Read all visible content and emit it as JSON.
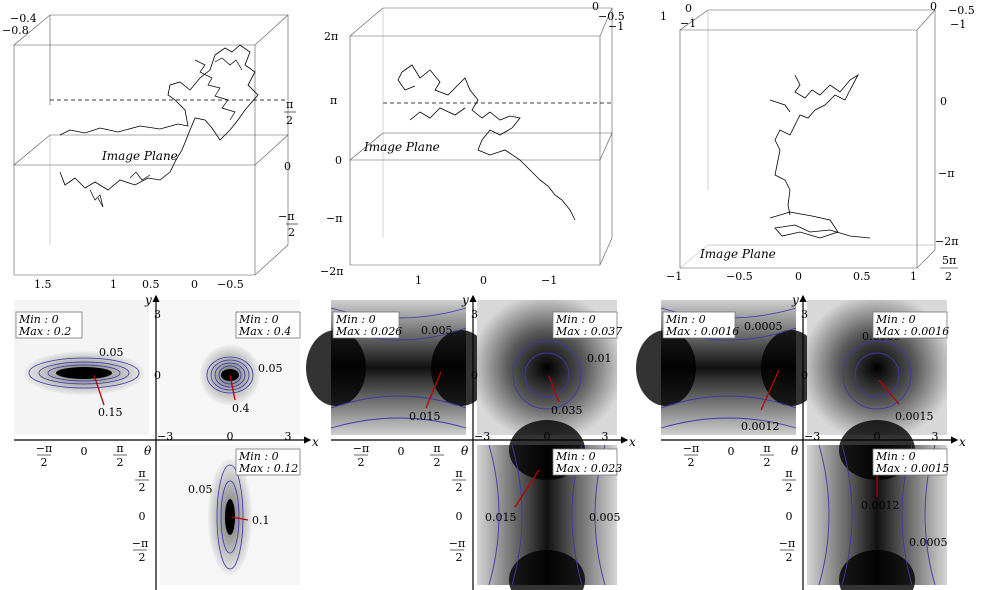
{
  "figure": {
    "image_plane_label": "Image Plane",
    "panels": [
      {
        "id": "a",
        "cube_bottom_ticks": [
          "1.5",
          "1",
          "0.5",
          "0",
          "−0.5"
        ],
        "cube_right_ticks": [
          "π/2",
          "0",
          "−π/2"
        ],
        "cube_top_ticks": [
          "−0.4",
          "−0.8"
        ],
        "xy": {
          "min": "Min : 0",
          "max_left": "Max : 0.2",
          "max_right": "Max : 0.4",
          "left_contours": [
            "0.05",
            "0.15"
          ],
          "right_contours": [
            "0.05",
            "0.4"
          ],
          "x_ticks_left": [
            "−π/2",
            "0",
            "π/2"
          ],
          "x_ticks_right": [
            "−3",
            "0",
            "3"
          ],
          "y_ticks": [
            "3",
            "0"
          ],
          "x_label": "x",
          "y_label": "y"
        },
        "theta": {
          "min": "Min : 0",
          "max": "Max : 0.12",
          "contours": [
            "0.05",
            "0.1"
          ],
          "y_ticks": [
            "π/2",
            "0",
            "−π/2"
          ],
          "label": "θ"
        }
      },
      {
        "id": "b",
        "cube_left_ticks": [
          "2π",
          "π",
          "0",
          "−π",
          "−2π"
        ],
        "cube_bottom_ticks": [
          "1",
          "0",
          "−1"
        ],
        "cube_top_ticks": [
          "0",
          "−0.5",
          "−1"
        ],
        "xy": {
          "min": "Min : 0",
          "max_left": "Max : 0.026",
          "max_right": "Max : 0.037",
          "left_contours": [
            "0.005",
            "0.015"
          ],
          "right_contours": [
            "0.01",
            "0.035"
          ],
          "x_ticks_left": [
            "−π/2",
            "0",
            "π/2"
          ],
          "x_ticks_right": [
            "−3",
            "0",
            "3"
          ],
          "y_ticks": [
            "3",
            "0"
          ],
          "x_label": "x",
          "y_label": "y"
        },
        "theta": {
          "min": "Min : 0",
          "max": "Max : 0.023",
          "contours": [
            "0.015",
            "0.005"
          ],
          "y_ticks": [
            "π/2",
            "0",
            "−π/2"
          ],
          "label": "θ"
        }
      },
      {
        "id": "c",
        "cube_right_ticks": [
          "0",
          "−π",
          "−2π",
          "−5π/2"
        ],
        "cube_bottom_ticks": [
          "−1",
          "−0.5",
          "0",
          "0.5",
          "1"
        ],
        "cube_top_ticks": [
          "1",
          "0",
          "−1",
          "0",
          "−0.5",
          "−1"
        ],
        "xy": {
          "min": "Min : 0",
          "max_left": "Max : 0.0016",
          "max_right": "Max : 0.0016",
          "left_contours": [
            "0.0005",
            "0.0012"
          ],
          "right_contours": [
            "0.0009",
            "0.0015"
          ],
          "x_ticks_left": [
            "−π/2",
            "0",
            "π/2"
          ],
          "x_ticks_right": [
            "−3",
            "0",
            "3"
          ],
          "y_ticks": [
            "3",
            "0"
          ],
          "x_label": "x",
          "y_label": "y"
        },
        "theta": {
          "min": "Min : 0",
          "max": "Max : 0.0015",
          "contours": [
            "0.0012",
            "0.0005"
          ],
          "y_ticks": [
            "π/2",
            "0",
            "−π/2"
          ],
          "label": "θ"
        }
      }
    ]
  }
}
